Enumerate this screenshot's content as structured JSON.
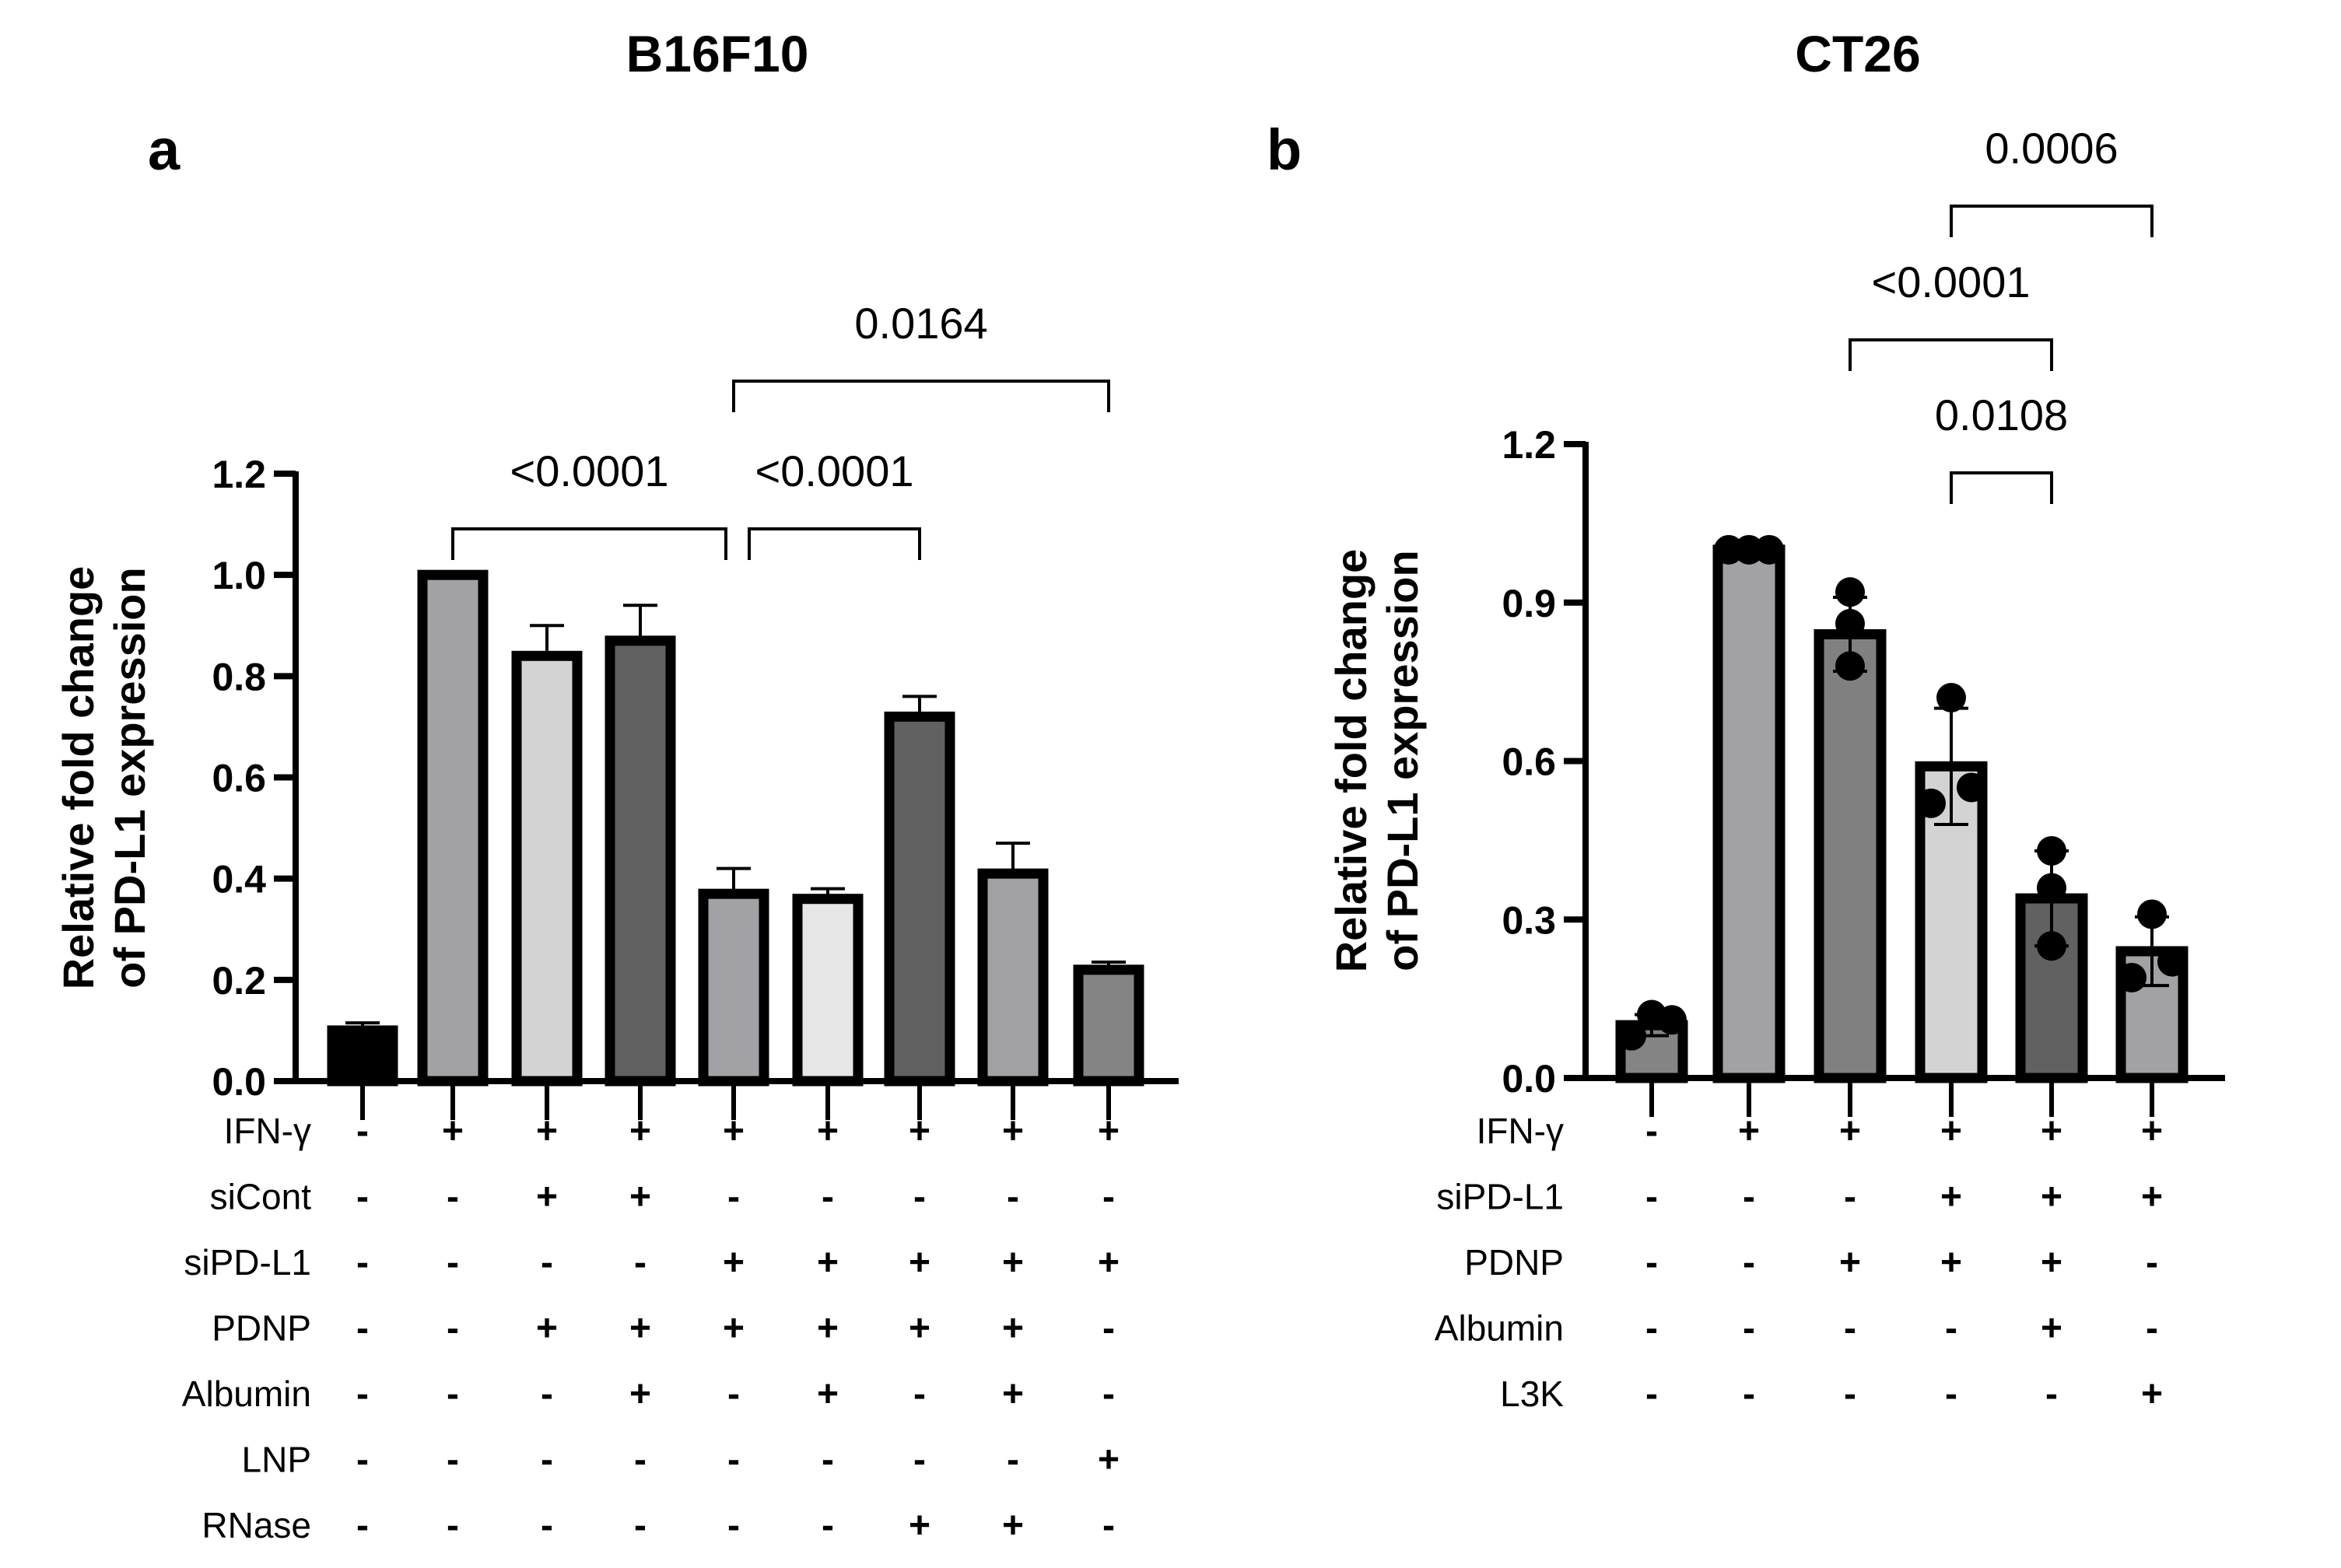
{
  "chart_data": [
    {
      "type": "bar",
      "panel": "a",
      "title": "B16F10",
      "ylabel": "Relative fold change\nof PD-L1 expression",
      "ylabel_lines": [
        "Relative fold change",
        "of PD-L1 expression"
      ],
      "ylim": [
        0,
        1.2
      ],
      "yticks": [
        "0.0",
        "0.2",
        "0.4",
        "0.6",
        "0.8",
        "1.0",
        "1.2"
      ],
      "ytick_values": [
        0,
        0.2,
        0.4,
        0.6,
        0.8,
        1.0,
        1.2
      ],
      "values": [
        0.1,
        1.0,
        0.84,
        0.87,
        0.37,
        0.36,
        0.72,
        0.41,
        0.22
      ],
      "errors": [
        0.015,
        0.0,
        0.06,
        0.07,
        0.05,
        0.02,
        0.04,
        0.06,
        0.015
      ],
      "colors": [
        "#000000",
        "#a2a2a6",
        "#d3d3d3",
        "#616161",
        "#a2a2a6",
        "#e6e6e6",
        "#616161",
        "#a2a2a6",
        "#848484"
      ],
      "conditions": {
        "rows": [
          "IFN-γ",
          "siCont",
          "siPD-L1",
          "PDNP",
          "Albumin",
          "LNP",
          "RNase"
        ],
        "matrix": [
          [
            "-",
            "+",
            "+",
            "+",
            "+",
            "+",
            "+",
            "+",
            "+"
          ],
          [
            "-",
            "-",
            "+",
            "+",
            "-",
            "-",
            "-",
            "-",
            "-"
          ],
          [
            "-",
            "-",
            "-",
            "-",
            "+",
            "+",
            "+",
            "+",
            "+"
          ],
          [
            "-",
            "-",
            "+",
            "+",
            "+",
            "+",
            "+",
            "+",
            "-"
          ],
          [
            "-",
            "-",
            "-",
            "+",
            "-",
            "+",
            "-",
            "+",
            "-"
          ],
          [
            "-",
            "-",
            "-",
            "-",
            "-",
            "-",
            "-",
            "-",
            "+"
          ],
          [
            "-",
            "-",
            "-",
            "-",
            "-",
            "-",
            "+",
            "+",
            "-"
          ]
        ]
      },
      "comparisons": [
        {
          "from": 1,
          "to": 4,
          "label": "<0.0001",
          "level": 1
        },
        {
          "from": 4,
          "to": 6,
          "label": "<0.0001",
          "level": 1
        },
        {
          "from": 4,
          "to": 8,
          "label": "0.0164",
          "level": 2
        }
      ]
    },
    {
      "type": "bar",
      "panel": "b",
      "title": "CT26",
      "ylabel": "Relative fold change\nof PD-L1 expression",
      "ylabel_lines": [
        "Relative fold change",
        "of PD-L1 expression"
      ],
      "ylim": [
        0,
        1.2
      ],
      "yticks": [
        "0.0",
        "0.3",
        "0.6",
        "0.9",
        "1.2"
      ],
      "ytick_values": [
        0,
        0.3,
        0.6,
        0.9,
        1.2
      ],
      "values": [
        0.1,
        1.0,
        0.84,
        0.59,
        0.34,
        0.24
      ],
      "errors": [
        0.02,
        0.0,
        0.07,
        0.11,
        0.09,
        0.065
      ],
      "points": [
        [
          0.08,
          0.12,
          0.11
        ],
        [
          1.0,
          1.0,
          1.0
        ],
        [
          0.92,
          0.86,
          0.78
        ],
        [
          0.72,
          0.52,
          0.55
        ],
        [
          0.43,
          0.36,
          0.25
        ],
        [
          0.31,
          0.19,
          0.22
        ]
      ],
      "colors": [
        "#848484",
        "#a2a2a6",
        "#808080",
        "#d3d3d3",
        "#616161",
        "#a2a2a6"
      ],
      "conditions": {
        "rows": [
          "IFN-γ",
          "siPD-L1",
          "PDNP",
          "Albumin",
          "L3K"
        ],
        "matrix": [
          [
            "-",
            "+",
            "+",
            "+",
            "+",
            "+"
          ],
          [
            "-",
            "-",
            "-",
            "+",
            "+",
            "+"
          ],
          [
            "-",
            "-",
            "+",
            "+",
            "+",
            "-"
          ],
          [
            "-",
            "-",
            "-",
            "-",
            "+",
            "-"
          ],
          [
            "-",
            "-",
            "-",
            "-",
            "-",
            "+"
          ]
        ]
      },
      "comparisons": [
        {
          "from": 3,
          "to": 4,
          "label": "0.0108",
          "level": 1
        },
        {
          "from": 2,
          "to": 4,
          "label": "<0.0001",
          "level": 2
        },
        {
          "from": 3,
          "to": 5,
          "label": "0.0006",
          "level": 3
        }
      ]
    }
  ]
}
